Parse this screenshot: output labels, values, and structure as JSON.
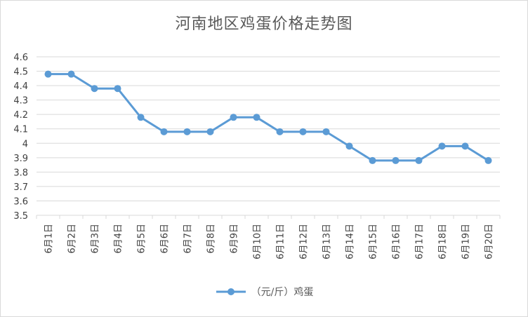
{
  "chart_data": {
    "type": "line",
    "title": "河南地区鸡蛋价格走势图",
    "categories": [
      "6月1日",
      "6月2日",
      "6月3日",
      "6月4日",
      "6月5日",
      "6月6日",
      "6月7日",
      "6月8日",
      "6月9日",
      "6月10日",
      "6月11日",
      "6月12日",
      "6月13日",
      "6月14日",
      "6月15日",
      "6月16日",
      "6月17日",
      "6月18日",
      "6月19日",
      "6月20日"
    ],
    "series": [
      {
        "name": "（元/斤）鸡蛋",
        "values": [
          4.48,
          4.48,
          4.38,
          4.38,
          4.18,
          4.08,
          4.08,
          4.08,
          4.18,
          4.18,
          4.08,
          4.08,
          4.08,
          3.98,
          3.88,
          3.88,
          3.88,
          3.98,
          3.98,
          3.88
        ]
      }
    ],
    "y_ticks": [
      "3.5",
      "3.6",
      "3.7",
      "3.8",
      "3.9",
      "4",
      "4.1",
      "4.2",
      "4.3",
      "4.4",
      "4.5",
      "4.6"
    ],
    "ylim": [
      3.5,
      4.6
    ],
    "xlabel": "",
    "ylabel": "",
    "grid": true,
    "legend_position": "bottom",
    "colors": {
      "line": "#5b9bd5",
      "grid": "#d9d9d9",
      "text": "#595959"
    }
  }
}
